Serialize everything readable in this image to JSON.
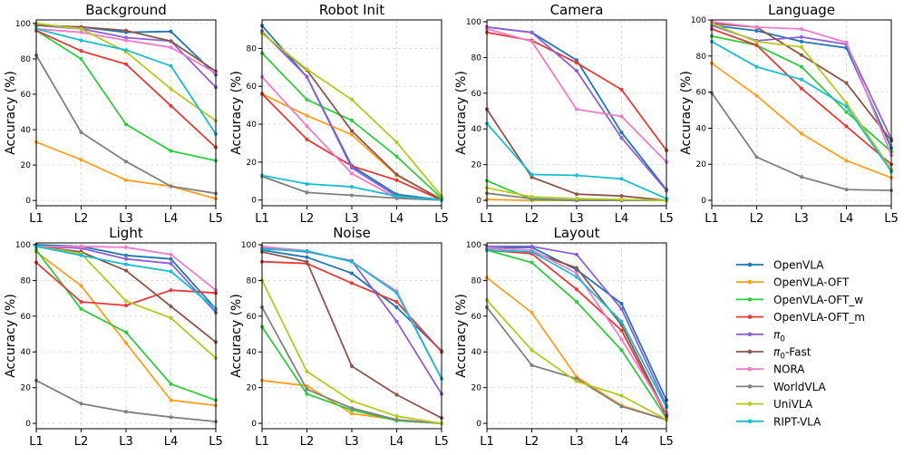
{
  "chart_data": {
    "type": "line",
    "categories": [
      "L1",
      "L2",
      "L3",
      "L4",
      "L5"
    ],
    "ylabel": "Accuracy (%)",
    "grid": true,
    "legend": {
      "placement": "bottom-right",
      "entries": [
        "OpenVLA",
        "OpenVLA-OFT",
        "OpenVLA-OFT_w",
        "OpenVLA-OFT_m",
        "π0",
        "π0-Fast",
        "NORA",
        "WorldVLA",
        "UniVLA",
        "RIPT-VLA"
      ]
    },
    "colors": {
      "OpenVLA": "#1f77b4",
      "OpenVLA-OFT": "#ff9f1c",
      "OpenVLA-OFT_w": "#2ecc40",
      "OpenVLA-OFT_m": "#e63939",
      "π0": "#8e5fd6",
      "π0-Fast": "#8c564b",
      "NORA": "#f07cc7",
      "WorldVLA": "#808080",
      "UniVLA": "#b5c91e",
      "RIPT-VLA": "#17becf"
    },
    "panels": [
      {
        "title": "Background",
        "ylim": [
          -3,
          102
        ],
        "yticks": [
          0,
          20,
          40,
          60,
          80,
          100
        ],
        "series": [
          {
            "name": "OpenVLA",
            "values": [
              99,
              98,
              95,
              95.5,
              71
            ]
          },
          {
            "name": "OpenVLA-OFT",
            "values": [
              33,
              23,
              11.5,
              8,
              1
            ]
          },
          {
            "name": "OpenVLA-OFT_w",
            "values": [
              96,
              80,
              43,
              28,
              22.5
            ]
          },
          {
            "name": "OpenVLA-OFT_m",
            "values": [
              96,
              84.5,
              77,
              53.5,
              30
            ]
          },
          {
            "name": "π0",
            "values": [
              99,
              97,
              92,
              90,
              64
            ]
          },
          {
            "name": "π0-Fast",
            "values": [
              99,
              98,
              96,
              90,
              73
            ]
          },
          {
            "name": "NORA",
            "values": [
              97,
              95,
              90.5,
              86.5,
              72
            ]
          },
          {
            "name": "WorldVLA",
            "values": [
              82,
              38.5,
              22,
              8,
              4
            ]
          },
          {
            "name": "UniVLA",
            "values": [
              100,
              97,
              84,
              63,
              45
            ]
          },
          {
            "name": "RIPT-VLA",
            "values": [
              97,
              90.5,
              85,
              76,
              37.5
            ]
          }
        ]
      },
      {
        "title": "Robot Init",
        "ylim": [
          -3,
          95
        ],
        "yticks": [
          0,
          20,
          40,
          60,
          80
        ],
        "series": [
          {
            "name": "OpenVLA",
            "values": [
              92,
              65,
              18,
              3,
              0
            ]
          },
          {
            "name": "OpenVLA-OFT",
            "values": [
              56,
              44.5,
              34.5,
              13,
              0.5
            ]
          },
          {
            "name": "OpenVLA-OFT_w",
            "values": [
              77.5,
              53,
              42,
              23,
              1
            ]
          },
          {
            "name": "OpenVLA-OFT_m",
            "values": [
              56,
              32,
              18,
              10.5,
              0
            ]
          },
          {
            "name": "π0",
            "values": [
              89,
              65,
              17,
              2,
              0
            ]
          },
          {
            "name": "π0-Fast",
            "values": [
              88,
              68.5,
              36.5,
              13.5,
              0
            ]
          },
          {
            "name": "NORA",
            "values": [
              65,
              39,
              14,
              1,
              0
            ]
          },
          {
            "name": "WorldVLA",
            "values": [
              12.5,
              4,
              2.5,
              1,
              0
            ]
          },
          {
            "name": "UniVLA",
            "values": [
              88,
              69,
              53,
              30.5,
              2
            ]
          },
          {
            "name": "RIPT-VLA",
            "values": [
              13,
              8.5,
              7,
              2,
              0
            ]
          }
        ]
      },
      {
        "title": "Camera",
        "ylim": [
          -3,
          101
        ],
        "yticks": [
          0,
          20,
          40,
          60,
          80,
          100
        ],
        "series": [
          {
            "name": "OpenVLA",
            "values": [
              97,
              94,
              78.5,
              38,
              6
            ]
          },
          {
            "name": "OpenVLA-OFT",
            "values": [
              0.5,
              0,
              0,
              0,
              0
            ]
          },
          {
            "name": "OpenVLA-OFT_w",
            "values": [
              11,
              0.5,
              0,
              0,
              0
            ]
          },
          {
            "name": "OpenVLA-OFT_m",
            "values": [
              94,
              89.5,
              77,
              62,
              28
            ]
          },
          {
            "name": "π0",
            "values": [
              97,
              94,
              72.5,
              35,
              5.5
            ]
          },
          {
            "name": "π0-Fast",
            "values": [
              51,
              13,
              3.5,
              2.5,
              0
            ]
          },
          {
            "name": "NORA",
            "values": [
              96,
              89,
              51,
              47,
              21.5
            ]
          },
          {
            "name": "WorldVLA",
            "values": [
              4,
              1,
              0,
              0,
              0
            ]
          },
          {
            "name": "UniVLA",
            "values": [
              7,
              2,
              1,
              0.5,
              0
            ]
          },
          {
            "name": "RIPT-VLA",
            "values": [
              43,
              14.5,
              14,
              12,
              1
            ]
          }
        ]
      },
      {
        "title": "Language",
        "ylim": [
          -3,
          100
        ],
        "yticks": [
          0,
          20,
          40,
          60,
          80,
          100
        ],
        "series": [
          {
            "name": "OpenVLA",
            "values": [
              97,
              94,
              88,
              84.5,
              29
            ]
          },
          {
            "name": "OpenVLA-OFT",
            "values": [
              76,
              58,
              37,
              22,
              12.5
            ]
          },
          {
            "name": "OpenVLA-OFT_w",
            "values": [
              91,
              86,
              74,
              49,
              27
            ]
          },
          {
            "name": "OpenVLA-OFT_m",
            "values": [
              95,
              86,
              62,
              41,
              20
            ]
          },
          {
            "name": "π0",
            "values": [
              97,
              88.5,
              90.5,
              86.5,
              34
            ]
          },
          {
            "name": "π0-Fast",
            "values": [
              98,
              96,
              80.5,
              65,
              33
            ]
          },
          {
            "name": "NORA",
            "values": [
              99,
              96,
              95,
              87.5,
              25
            ]
          },
          {
            "name": "WorldVLA",
            "values": [
              59.5,
              24,
              13,
              6,
              5.5
            ]
          },
          {
            "name": "UniVLA",
            "values": [
              98,
              88,
              85,
              54,
              17
            ]
          },
          {
            "name": "RIPT-VLA",
            "values": [
              88,
              74,
              67,
              52,
              16
            ]
          }
        ]
      },
      {
        "title": "Light",
        "ylim": [
          -3,
          101
        ],
        "yticks": [
          0,
          20,
          40,
          60,
          80,
          100
        ],
        "series": [
          {
            "name": "OpenVLA",
            "values": [
              100,
              99,
              94,
              92,
              64
            ]
          },
          {
            "name": "OpenVLA-OFT",
            "values": [
              96,
              77,
              45,
              13,
              10
            ]
          },
          {
            "name": "OpenVLA-OFT_w",
            "values": [
              97,
              64,
              51,
              22,
              13
            ]
          },
          {
            "name": "OpenVLA-OFT_m",
            "values": [
              90,
              68,
              66,
              74.5,
              73
            ]
          },
          {
            "name": "π0",
            "values": [
              99,
              98,
              92,
              89.5,
              62
            ]
          },
          {
            "name": "π0-Fast",
            "values": [
              99,
              96,
              85.5,
              65.5,
              45.5
            ]
          },
          {
            "name": "NORA",
            "values": [
              99,
              99,
              98.5,
              94.5,
              74.5
            ]
          },
          {
            "name": "WorldVLA",
            "values": [
              24,
              11,
              6.5,
              3.5,
              1
            ]
          },
          {
            "name": "UniVLA",
            "values": [
              99,
              95,
              68.5,
              59,
              36.5
            ]
          },
          {
            "name": "RIPT-VLA",
            "values": [
              99,
              94,
              89,
              85,
              64
            ]
          }
        ]
      },
      {
        "title": "Noise",
        "ylim": [
          -3,
          101
        ],
        "yticks": [
          0,
          20,
          40,
          60,
          80,
          100
        ],
        "series": [
          {
            "name": "OpenVLA",
            "values": [
              97,
              93,
              84,
              65,
              40.5
            ]
          },
          {
            "name": "OpenVLA-OFT",
            "values": [
              24,
              21,
              5.5,
              2,
              0
            ]
          },
          {
            "name": "OpenVLA-OFT_w",
            "values": [
              54,
              16.5,
              7.5,
              1.5,
              0
            ]
          },
          {
            "name": "OpenVLA-OFT_m",
            "values": [
              90.5,
              89.5,
              78.5,
              68,
              40
            ]
          },
          {
            "name": "π0",
            "values": [
              98,
              96,
              91,
              57,
              16.5
            ]
          },
          {
            "name": "π0-Fast",
            "values": [
              96,
              90.5,
              32,
              16,
              3
            ]
          },
          {
            "name": "NORA",
            "values": [
              99,
              96.5,
              90.5,
              74,
              25
            ]
          },
          {
            "name": "WorldVLA",
            "values": [
              65,
              19,
              8.5,
              2,
              0
            ]
          },
          {
            "name": "UniVLA",
            "values": [
              80,
              29,
              12.5,
              4,
              0
            ]
          },
          {
            "name": "RIPT-VLA",
            "values": [
              97.5,
              96.5,
              90.5,
              73,
              25
            ]
          }
        ]
      },
      {
        "title": "Layout",
        "ylim": [
          -3,
          101
        ],
        "yticks": [
          0,
          20,
          40,
          60,
          80,
          100
        ],
        "series": [
          {
            "name": "OpenVLA",
            "values": [
              98,
              98.5,
              86,
              67,
              13
            ]
          },
          {
            "name": "OpenVLA-OFT",
            "values": [
              81.5,
              62,
              26,
              10,
              2
            ]
          },
          {
            "name": "OpenVLA-OFT_w",
            "values": [
              97,
              90,
              68,
              41,
              3
            ]
          },
          {
            "name": "OpenVLA-OFT_m",
            "values": [
              97,
              95,
              75,
              52,
              4
            ]
          },
          {
            "name": "π0",
            "values": [
              99,
              99,
              94.5,
              64,
              10
            ]
          },
          {
            "name": "π0-Fast",
            "values": [
              97,
              96,
              87,
              55,
              5
            ]
          },
          {
            "name": "NORA",
            "values": [
              98,
              97,
              84,
              47,
              6
            ]
          },
          {
            "name": "WorldVLA",
            "values": [
              65,
              32.5,
              25,
              9.5,
              2
            ]
          },
          {
            "name": "UniVLA",
            "values": [
              69,
              41,
              23.5,
              15.5,
              2
            ]
          },
          {
            "name": "RIPT-VLA",
            "values": [
              97,
              96,
              82,
              57,
              9
            ]
          }
        ]
      }
    ]
  }
}
